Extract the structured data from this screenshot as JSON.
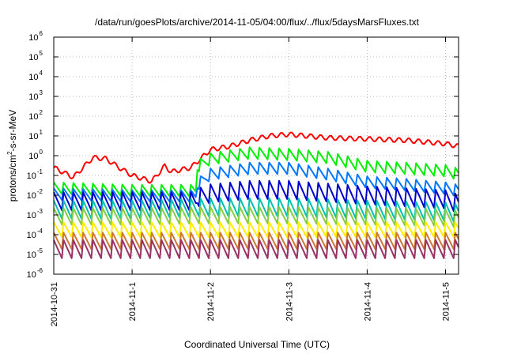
{
  "chart_data": {
    "type": "line",
    "title": "/data/run/goesPlots/archive/2014-11-05/04:00/flux/../flux/5daysMarsFluxes.txt",
    "xlabel": "Coordinated Universal Time (UTC)",
    "ylabel": "protons/cm2-s-sr-MeV",
    "yscale": "log",
    "ylim": [
      1e-06,
      1000000.0
    ],
    "y_ticks": [
      {
        "base": "10",
        "exp": "-6",
        "value": 1e-06
      },
      {
        "base": "10",
        "exp": "-5",
        "value": 1e-05
      },
      {
        "base": "10",
        "exp": "-4",
        "value": 0.0001
      },
      {
        "base": "10",
        "exp": "-3",
        "value": 0.001
      },
      {
        "base": "10",
        "exp": "-2",
        "value": 0.01
      },
      {
        "base": "10",
        "exp": "-1",
        "value": 0.1
      },
      {
        "base": "10",
        "exp": "0",
        "value": 1
      },
      {
        "base": "10",
        "exp": "1",
        "value": 10
      },
      {
        "base": "10",
        "exp": "2",
        "value": 100
      },
      {
        "base": "10",
        "exp": "3",
        "value": 1000
      },
      {
        "base": "10",
        "exp": "4",
        "value": 10000
      },
      {
        "base": "10",
        "exp": "5",
        "value": 100000
      },
      {
        "base": "10",
        "exp": "6",
        "value": 1000000
      }
    ],
    "x_ticks": [
      "2014-10-31",
      "2014-11-1",
      "2014-11-2",
      "2014-11-3",
      "2014-11-4",
      "2014-11-5"
    ],
    "xlim": [
      "2014-10-31T00:00",
      "2014-11-05T04:00"
    ],
    "grid": true,
    "legend": "none",
    "sawtooth_period_hours": 3,
    "series": [
      {
        "color": "#ff0000",
        "x": [
          "2014-10-31T00:00",
          "2014-10-31T06:00",
          "2014-10-31T12:00",
          "2014-10-31T16:00",
          "2014-10-31T20:00",
          "2014-11-01T00:00",
          "2014-11-01T06:00",
          "2014-11-01T10:00",
          "2014-11-01T12:00",
          "2014-11-01T18:00",
          "2014-11-02T00:00",
          "2014-11-02T06:00",
          "2014-11-02T12:00",
          "2014-11-02T18:00",
          "2014-11-03T00:00",
          "2014-11-03T12:00",
          "2014-11-04T00:00",
          "2014-11-04T12:00",
          "2014-11-05T00:00",
          "2014-11-05T04:00"
        ],
        "y": [
          0.25,
          0.08,
          0.8,
          0.7,
          0.25,
          0.1,
          0.05,
          0.3,
          0.15,
          0.25,
          2,
          3,
          6,
          10,
          12,
          8,
          7,
          6,
          4,
          3
        ]
      },
      {
        "color": "#00ee00",
        "x": [
          "2014-10-31T00:00",
          "2014-11-01T00:00",
          "2014-11-01T19:30",
          "2014-11-01T20:00",
          "2014-11-02T00:00",
          "2014-11-02T12:00",
          "2014-11-03T00:00",
          "2014-11-03T12:00",
          "2014-11-04T00:00",
          "2014-11-04T12:00",
          "2014-11-05T00:00",
          "2014-11-05T04:00"
        ],
        "y": [
          0.02,
          0.015,
          0.015,
          0.25,
          0.6,
          1.2,
          1,
          0.7,
          0.25,
          0.2,
          0.15,
          0.1
        ]
      },
      {
        "color": "#0077ff",
        "x": [
          "2014-10-31T00:00",
          "2014-11-01T00:00",
          "2014-11-01T19:30",
          "2014-11-01T20:00",
          "2014-11-02T00:00",
          "2014-11-02T12:00",
          "2014-11-03T00:00",
          "2014-11-03T12:00",
          "2014-11-04T00:00",
          "2014-11-04T12:00",
          "2014-11-05T00:00",
          "2014-11-05T04:00"
        ],
        "y": [
          0.01,
          0.008,
          0.008,
          0.03,
          0.1,
          0.2,
          0.2,
          0.1,
          0.04,
          0.03,
          0.02,
          0.015
        ]
      },
      {
        "color": "#0000cc",
        "x": [
          "2014-10-31T00:00",
          "2014-11-01T00:00",
          "2014-11-01T19:30",
          "2014-11-01T20:00",
          "2014-11-02T00:00",
          "2014-11-02T12:00",
          "2014-11-03T00:00",
          "2014-11-04T00:00",
          "2014-11-05T00:00",
          "2014-11-05T04:00"
        ],
        "y": [
          0.004,
          0.004,
          0.004,
          0.006,
          0.01,
          0.015,
          0.015,
          0.008,
          0.005,
          0.003
        ]
      },
      {
        "color": "#00c0b0",
        "x": [
          "2014-10-31T00:00",
          "2014-11-01T00:00",
          "2014-11-02T00:00",
          "2014-11-03T00:00",
          "2014-11-04T00:00",
          "2014-11-05T00:00",
          "2014-11-05T04:00"
        ],
        "y": [
          0.0015,
          0.0015,
          0.002,
          0.002,
          0.0015,
          0.0012,
          0.001
        ]
      },
      {
        "color": "#88cc44",
        "x": [
          "2014-10-31T00:00",
          "2014-11-01T00:00",
          "2014-11-02T00:00",
          "2014-11-03T00:00",
          "2014-11-04T00:00",
          "2014-11-05T00:00",
          "2014-11-05T04:00"
        ],
        "y": [
          0.0007,
          0.0007,
          0.0008,
          0.0008,
          0.0007,
          0.0006,
          0.0005
        ]
      },
      {
        "color": "#ffee00",
        "x": [
          "2014-10-31T00:00",
          "2014-11-01T00:00",
          "2014-11-02T00:00",
          "2014-11-03T00:00",
          "2014-11-04T00:00",
          "2014-11-05T00:00",
          "2014-11-05T04:00"
        ],
        "y": [
          0.00015,
          0.00015,
          0.00015,
          0.00015,
          0.00015,
          0.00015,
          0.00015
        ]
      },
      {
        "color": "#cc7733",
        "x": [
          "2014-10-31T00:00",
          "2014-11-01T00:00",
          "2014-11-02T00:00",
          "2014-11-03T00:00",
          "2014-11-04T00:00",
          "2014-11-05T00:00",
          "2014-11-05T04:00"
        ],
        "y": [
          4e-05,
          4e-05,
          4e-05,
          4e-05,
          4e-05,
          4e-05,
          4e-05
        ]
      },
      {
        "color": "#993366",
        "x": [
          "2014-10-31T00:00",
          "2014-11-01T00:00",
          "2014-11-02T00:00",
          "2014-11-03T00:00",
          "2014-11-04T00:00",
          "2014-11-05T00:00",
          "2014-11-05T04:00"
        ],
        "y": [
          1.5e-05,
          1.5e-05,
          1.5e-05,
          1.5e-05,
          1.5e-05,
          1.5e-05,
          1.5e-05
        ]
      }
    ]
  }
}
